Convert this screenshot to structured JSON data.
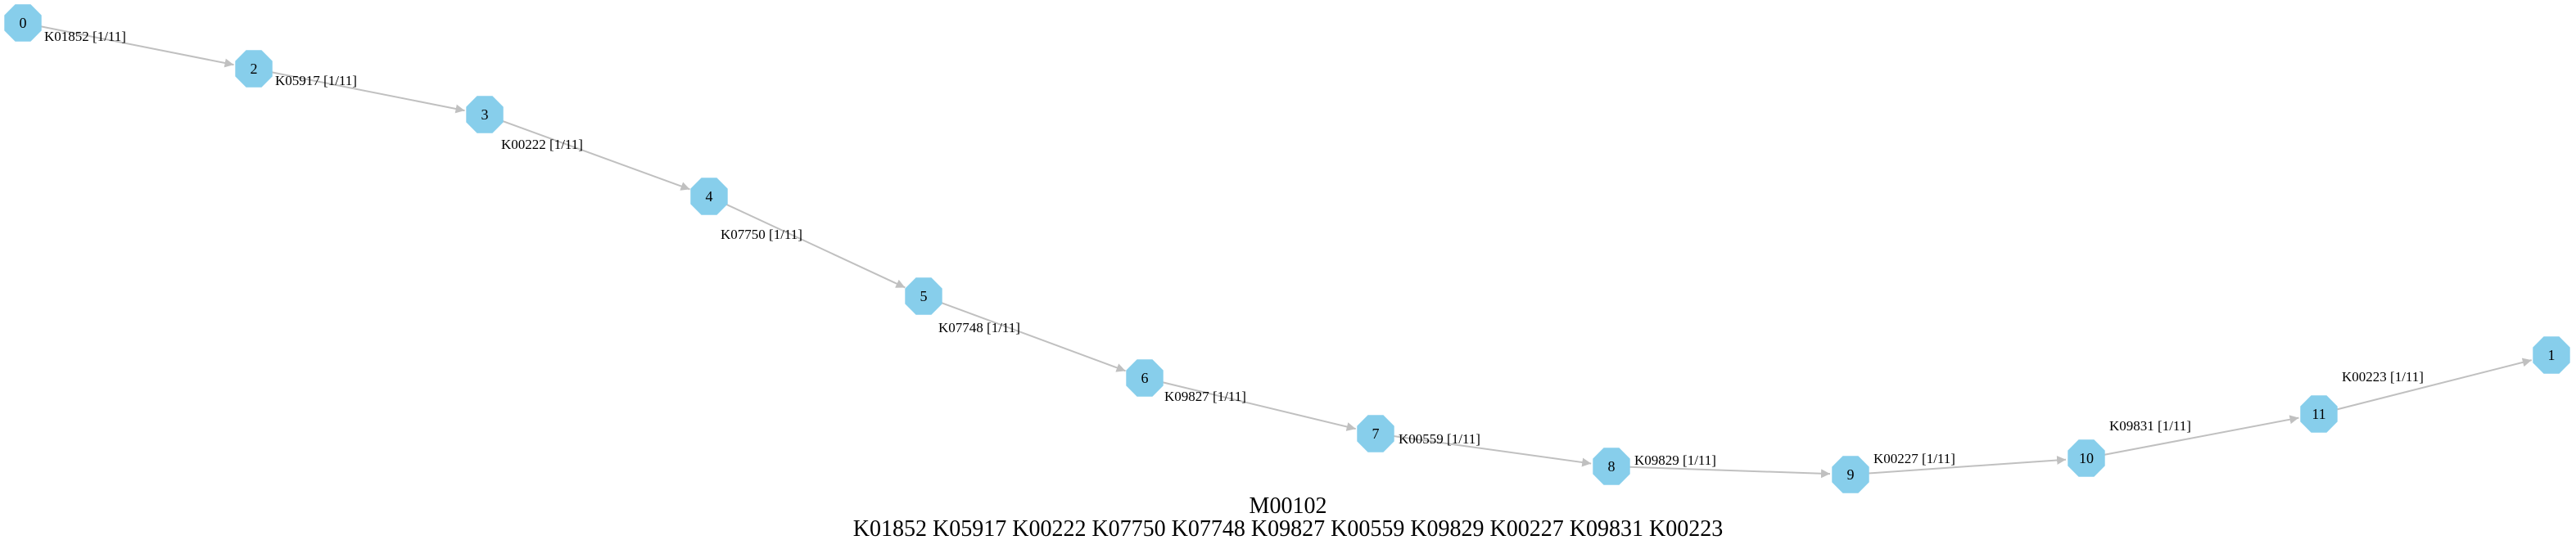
{
  "diagram": {
    "title": "M00102",
    "subtitle": "K01852 K05917 K00222 K07750 K07748 K09827 K00559 K09829 K00227 K09831 K00223",
    "colors": {
      "node_fill": "#87ceeb",
      "edge": "#c0c0c0",
      "text": "#000000"
    },
    "node_shape": "octagon",
    "nodes": [
      {
        "id": "0",
        "label": "0"
      },
      {
        "id": "2",
        "label": "2"
      },
      {
        "id": "3",
        "label": "3"
      },
      {
        "id": "4",
        "label": "4"
      },
      {
        "id": "5",
        "label": "5"
      },
      {
        "id": "6",
        "label": "6"
      },
      {
        "id": "7",
        "label": "7"
      },
      {
        "id": "8",
        "label": "8"
      },
      {
        "id": "9",
        "label": "9"
      },
      {
        "id": "10",
        "label": "10"
      },
      {
        "id": "11",
        "label": "11"
      },
      {
        "id": "1",
        "label": "1"
      }
    ],
    "edges": [
      {
        "from": "0",
        "to": "2",
        "label": "K01852 [1/11]"
      },
      {
        "from": "2",
        "to": "3",
        "label": "K05917 [1/11]"
      },
      {
        "from": "3",
        "to": "4",
        "label": "K00222 [1/11]"
      },
      {
        "from": "4",
        "to": "5",
        "label": "K07750 [1/11]"
      },
      {
        "from": "5",
        "to": "6",
        "label": "K07748 [1/11]"
      },
      {
        "from": "6",
        "to": "7",
        "label": "K09827 [1/11]"
      },
      {
        "from": "7",
        "to": "8",
        "label": "K00559 [1/11]"
      },
      {
        "from": "8",
        "to": "9",
        "label": "K09829 [1/11]"
      },
      {
        "from": "9",
        "to": "10",
        "label": "K00227 [1/11]"
      },
      {
        "from": "10",
        "to": "11",
        "label": "K09831 [1/11]"
      },
      {
        "from": "11",
        "to": "1",
        "label": "K00223 [1/11]"
      }
    ]
  }
}
